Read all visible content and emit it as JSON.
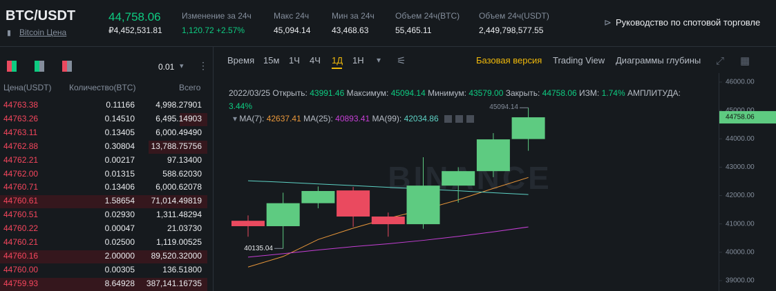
{
  "header": {
    "pair": "BTC/USDT",
    "subtitle": "Bitcoin Цена",
    "price": "44,758.06",
    "price_rub": "₽4,452,531.81",
    "stats": [
      {
        "label": "Изменение за 24ч",
        "value": "1,120.72 +2.57%"
      },
      {
        "label": "Макс 24ч",
        "value": "45,094.14"
      },
      {
        "label": "Мин за 24ч",
        "value": "43,468.63"
      },
      {
        "label": "Объем 24ч(BTC)",
        "value": "55,465.11"
      },
      {
        "label": "Объем 24ч(USDT)",
        "value": "2,449,798,577.55"
      }
    ],
    "guide": "Руководство по спотовой торговле"
  },
  "orderbook": {
    "step": "0.01",
    "columns": [
      "Цена(USDT)",
      "Количество(BTC)",
      "Всего"
    ],
    "rows": [
      [
        "44763.38",
        "0.11166",
        "4,998.27901"
      ],
      [
        "44763.26",
        "0.14510",
        "6,495.14903"
      ],
      [
        "44763.11",
        "0.13405",
        "6,000.49490"
      ],
      [
        "44762.88",
        "0.30804",
        "13,788.75756"
      ],
      [
        "44762.21",
        "0.00217",
        "97.13400"
      ],
      [
        "44762.00",
        "0.01315",
        "588.62030"
      ],
      [
        "44760.71",
        "0.13406",
        "6,000.62078"
      ],
      [
        "44760.61",
        "1.58654",
        "71,014.49819"
      ],
      [
        "44760.51",
        "0.02930",
        "1,311.48294"
      ],
      [
        "44760.22",
        "0.00047",
        "21.03730"
      ],
      [
        "44760.21",
        "0.02500",
        "1,119.00525"
      ],
      [
        "44760.16",
        "2.00000",
        "89,520.32000"
      ],
      [
        "44760.00",
        "0.00305",
        "136.51800"
      ],
      [
        "44759.93",
        "8.64928",
        "387,141.16735"
      ]
    ]
  },
  "toolbar": {
    "intervals": [
      "Время",
      "15м",
      "1Ч",
      "4Ч",
      "1Д",
      "1Н"
    ],
    "active": 4,
    "views": [
      "Базовая версия",
      "Trading View",
      "Диаграммы глубины"
    ],
    "active_view": 0
  },
  "chart_data": {
    "type": "candlestick",
    "date": "2022/03/25",
    "info": [
      {
        "label": "Открыть:",
        "value": "43991.46"
      },
      {
        "label": "Максимум:",
        "value": "45094.14"
      },
      {
        "label": "Минимум:",
        "value": "43579.00"
      },
      {
        "label": "Закрыть:",
        "value": "44758.06"
      },
      {
        "label": "ИЗМ:",
        "value": "1.74%"
      },
      {
        "label": "АМПЛИТУДА:",
        "value": "3.44%"
      }
    ],
    "categories": [
      null,
      null,
      null,
      null,
      null,
      null,
      null,
      null,
      null
    ],
    "open": [
      41110,
      40920,
      41730,
      42180,
      41260,
      40990,
      42350,
      42860,
      43991.46
    ],
    "high": [
      41300,
      42100,
      42320,
      42300,
      41400,
      43350,
      43000,
      44200,
      45094.14
    ],
    "low": [
      40550,
      40135.04,
      41550,
      40900,
      40550,
      40830,
      41750,
      42650,
      43579
    ],
    "close": [
      40920,
      41730,
      42160,
      41260,
      40990,
      42350,
      42860,
      43980,
      44758.06
    ],
    "up_color": "#5ecb81",
    "down_color": "#ea4a5f",
    "series": [
      {
        "name": "MA(7):",
        "color": "#e9973a",
        "values": [
          39480,
          39850,
          40450,
          40850,
          41200,
          41500,
          41850,
          42250,
          42637.41
        ]
      },
      {
        "name": "MA(25):",
        "color": "#c63fd6",
        "values": [
          39830,
          39950,
          40080,
          40200,
          40300,
          40420,
          40560,
          40720,
          40893.41
        ]
      },
      {
        "name": "MA(99):",
        "color": "#5ed3c6",
        "values": [
          42520,
          42470,
          42410,
          42350,
          42290,
          42230,
          42170,
          42100,
          42034.86
        ]
      }
    ],
    "ylim": [
      38635,
      46316
    ],
    "yticks": [
      {
        "value": 39000,
        "label": "39000.00"
      },
      {
        "value": 40000,
        "label": "40000.00"
      },
      {
        "value": 41000,
        "label": "41000.00"
      },
      {
        "value": 42000,
        "label": "42000.00"
      },
      {
        "value": 43000,
        "label": "43000.00"
      },
      {
        "value": 44000,
        "label": "44000.00"
      },
      {
        "value": 45000,
        "label": "45000.00"
      },
      {
        "value": 46000,
        "label": "46000.00"
      }
    ],
    "watermark": "BINANCE"
  }
}
